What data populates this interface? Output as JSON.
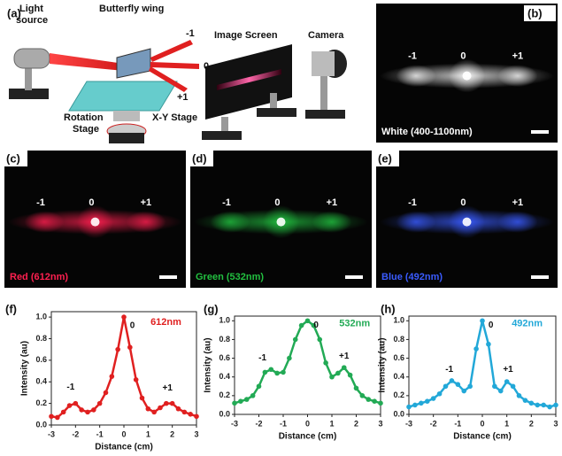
{
  "panel_a": {
    "label": "(a)",
    "light_source": [
      "Light",
      "source"
    ],
    "butterfly_wing": "Butterfly wing",
    "orders": [
      "-1",
      "0",
      "+1"
    ],
    "image_screen": "Image Screen",
    "camera": "Camera",
    "xy_stage": "X-Y Stage",
    "rotation_stage": [
      "Rotation",
      "Stage"
    ]
  },
  "photos": [
    {
      "label": "(b)",
      "orders": [
        "-1",
        "0",
        "+1"
      ],
      "caption": "White (400-1100nm)",
      "color": "#ffffff"
    },
    {
      "label": "(c)",
      "orders": [
        "-1",
        "0",
        "+1"
      ],
      "caption": "Red (612nm)",
      "color": "#ff2050"
    },
    {
      "label": "(d)",
      "orders": [
        "-1",
        "0",
        "+1"
      ],
      "caption": "Green (532nm)",
      "color": "#22c040"
    },
    {
      "label": "(e)",
      "orders": [
        "-1",
        "0",
        "+1"
      ],
      "caption": "Blue (492nm)",
      "color": "#3a5cff"
    }
  ],
  "chart_data": [
    {
      "type": "line",
      "panel_label": "(f)",
      "xlabel": "Distance (cm)",
      "ylabel": "Intensity (au)",
      "x": [
        -3,
        -2.75,
        -2.5,
        -2.25,
        -2,
        -1.75,
        -1.5,
        -1.25,
        -1,
        -0.75,
        -0.5,
        -0.25,
        0,
        0.25,
        0.5,
        0.75,
        1,
        1.25,
        1.5,
        1.75,
        2,
        2.25,
        2.5,
        2.75,
        3
      ],
      "series": [
        {
          "name": "612nm",
          "color": "#e02020",
          "values": [
            0.08,
            0.07,
            0.12,
            0.18,
            0.2,
            0.14,
            0.12,
            0.14,
            0.2,
            0.3,
            0.45,
            0.7,
            1.0,
            0.72,
            0.42,
            0.25,
            0.15,
            0.12,
            0.16,
            0.2,
            0.2,
            0.15,
            0.12,
            0.1,
            0.08
          ]
        }
      ],
      "annotations": [
        "0",
        "-1",
        "+1"
      ],
      "xlim": [
        -3,
        3
      ],
      "xticks": [
        -3,
        -2,
        -1,
        0,
        1,
        2,
        3
      ],
      "ylim": [
        0,
        1.05
      ],
      "yticks": [
        {
          "value": 0,
          "label": "0.0"
        },
        0.2,
        0.4,
        0.6,
        0.8,
        {
          "value": 1,
          "label": "1.0"
        }
      ]
    },
    {
      "type": "line",
      "panel_label": "(g)",
      "xlabel": "Distance (cm)",
      "ylabel": "Intensity (au)",
      "x": [
        -3,
        -2.75,
        -2.5,
        -2.25,
        -2,
        -1.75,
        -1.5,
        -1.25,
        -1,
        -0.75,
        -0.5,
        -0.25,
        0,
        0.25,
        0.5,
        0.75,
        1,
        1.25,
        1.5,
        1.75,
        2,
        2.25,
        2.5,
        2.75,
        3
      ],
      "series": [
        {
          "name": "532nm",
          "color": "#22aa55",
          "values": [
            0.12,
            0.14,
            0.16,
            0.2,
            0.3,
            0.45,
            0.48,
            0.44,
            0.45,
            0.6,
            0.8,
            0.95,
            1.0,
            0.95,
            0.8,
            0.55,
            0.4,
            0.44,
            0.5,
            0.42,
            0.28,
            0.2,
            0.16,
            0.14,
            0.12
          ]
        }
      ],
      "annotations": [
        "0",
        "-1",
        "+1"
      ],
      "xlim": [
        -3,
        3
      ],
      "xticks": [
        -3,
        -2,
        -1,
        0,
        1,
        2,
        3
      ],
      "ylim": [
        0,
        1.05
      ],
      "yticks": [
        {
          "value": 0,
          "label": "0.0"
        },
        0.2,
        0.4,
        0.6,
        0.8,
        {
          "value": 1,
          "label": "1.0"
        }
      ]
    },
    {
      "type": "line",
      "panel_label": "(h)",
      "xlabel": "Distance (cm)",
      "ylabel": "Intensity (au)",
      "x": [
        -3,
        -2.75,
        -2.5,
        -2.25,
        -2,
        -1.75,
        -1.5,
        -1.25,
        -1,
        -0.75,
        -0.5,
        -0.25,
        0,
        0.25,
        0.5,
        0.75,
        1,
        1.25,
        1.5,
        1.75,
        2,
        2.25,
        2.5,
        2.75,
        3
      ],
      "series": [
        {
          "name": "492nm",
          "color": "#22a8d8",
          "values": [
            0.08,
            0.1,
            0.12,
            0.14,
            0.17,
            0.22,
            0.3,
            0.36,
            0.32,
            0.25,
            0.3,
            0.7,
            1.0,
            0.75,
            0.3,
            0.25,
            0.35,
            0.3,
            0.2,
            0.15,
            0.12,
            0.1,
            0.1,
            0.08,
            0.1
          ]
        }
      ],
      "annotations": [
        "0",
        "-1",
        "+1"
      ],
      "xlim": [
        -3,
        3
      ],
      "xticks": [
        -3,
        -2,
        -1,
        0,
        1,
        2,
        3
      ],
      "ylim": [
        0,
        1.05
      ],
      "yticks": [
        {
          "value": 0,
          "label": "0.0"
        },
        0.2,
        0.4,
        0.6,
        0.8,
        {
          "value": 1,
          "label": "1.0"
        }
      ]
    }
  ]
}
